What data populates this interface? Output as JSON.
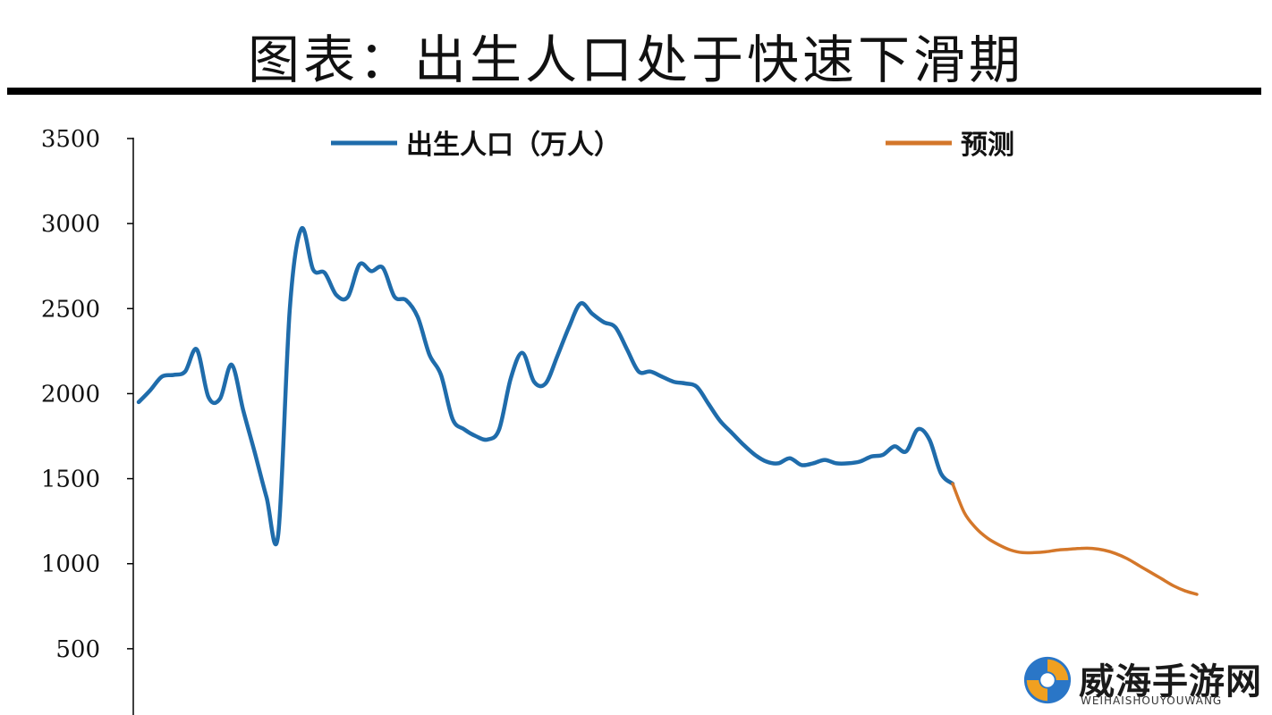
{
  "title": "图表：出生人口处于快速下滑期",
  "watermark": {
    "name": "威海手游网",
    "sub": "WEIHAISHOUYOUWANG"
  },
  "colors": {
    "actual": "#1f6cab",
    "forecast": "#d4772a",
    "axis": "#000000"
  },
  "chart_data": {
    "type": "line",
    "ylim": [
      0,
      3500
    ],
    "yticks": [
      500,
      1000,
      1500,
      2000,
      2500,
      3000,
      3500
    ],
    "xlim": [
      1949,
      2040
    ],
    "grid": false,
    "legend_position": "top",
    "series": [
      {
        "name": "出生人口（万人）",
        "color": "#1f6cab",
        "x": [
          1949,
          1950,
          1951,
          1952,
          1953,
          1954,
          1955,
          1956,
          1957,
          1958,
          1959,
          1960,
          1961,
          1962,
          1963,
          1964,
          1965,
          1966,
          1967,
          1968,
          1969,
          1970,
          1971,
          1972,
          1973,
          1974,
          1975,
          1976,
          1977,
          1978,
          1979,
          1980,
          1981,
          1982,
          1983,
          1984,
          1985,
          1986,
          1987,
          1988,
          1989,
          1990,
          1991,
          1992,
          1993,
          1994,
          1995,
          1996,
          1997,
          1998,
          1999,
          2000,
          2001,
          2002,
          2003,
          2004,
          2005,
          2006,
          2007,
          2008,
          2009,
          2010,
          2011,
          2012,
          2013,
          2014,
          2015,
          2016,
          2017,
          2018,
          2019
        ],
        "values": [
          1950,
          2020,
          2100,
          2110,
          2130,
          2260,
          1980,
          1970,
          2170,
          1900,
          1650,
          1390,
          1170,
          2500,
          2970,
          2730,
          2710,
          2580,
          2570,
          2760,
          2720,
          2740,
          2570,
          2550,
          2450,
          2230,
          2110,
          1850,
          1790,
          1750,
          1730,
          1790,
          2090,
          2240,
          2070,
          2060,
          2220,
          2390,
          2530,
          2470,
          2420,
          2390,
          2260,
          2130,
          2130,
          2100,
          2070,
          2060,
          2040,
          1940,
          1840,
          1770,
          1700,
          1640,
          1600,
          1590,
          1620,
          1580,
          1590,
          1610,
          1590,
          1590,
          1600,
          1630,
          1640,
          1690,
          1660,
          1790,
          1730,
          1530,
          1470
        ]
      },
      {
        "name": "预测",
        "color": "#d4772a",
        "x": [
          2019,
          2020,
          2021,
          2022,
          2023,
          2024,
          2025,
          2026,
          2027,
          2028,
          2029,
          2030,
          2031,
          2032,
          2033,
          2034,
          2035,
          2036,
          2037,
          2038,
          2039,
          2040
        ],
        "values": [
          1470,
          1300,
          1210,
          1150,
          1110,
          1080,
          1065,
          1065,
          1070,
          1080,
          1085,
          1090,
          1090,
          1080,
          1060,
          1030,
          990,
          950,
          910,
          870,
          840,
          820
        ]
      }
    ]
  }
}
